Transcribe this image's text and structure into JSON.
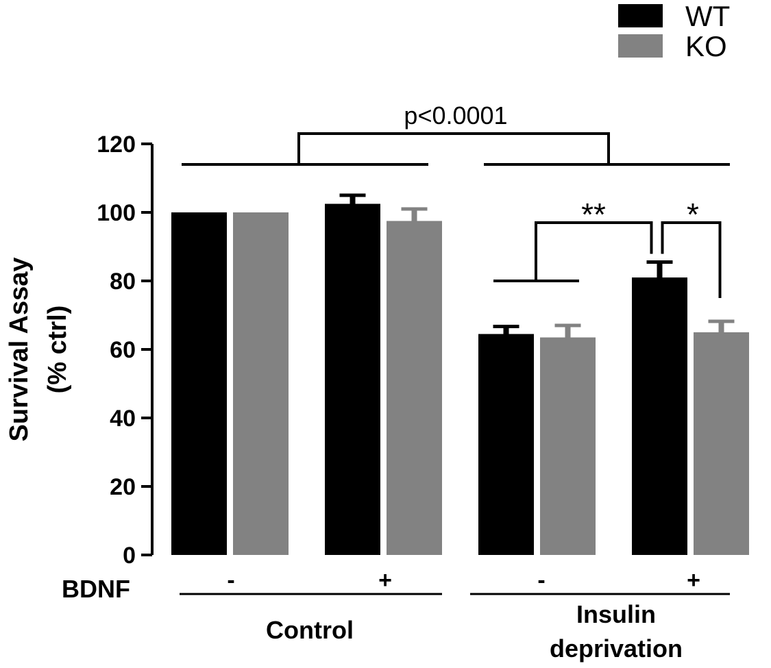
{
  "chart_data": {
    "type": "bar",
    "ylabel": [
      "Survival Assay",
      "(% ctrl)"
    ],
    "ylim": [
      0,
      120
    ],
    "yticks": [
      0,
      20,
      40,
      60,
      80,
      100,
      120
    ],
    "legend_position": "top-right",
    "colors": {
      "WT": "#000000",
      "KO": "#828282"
    },
    "series": [
      {
        "name": "WT",
        "values": [
          100,
          102.5,
          64.5,
          81
        ],
        "errors": [
          0,
          2.5,
          2.2,
          4.5
        ]
      },
      {
        "name": "KO",
        "values": [
          100,
          97.5,
          63.5,
          65
        ],
        "errors": [
          0,
          3.5,
          3.5,
          3.2
        ]
      }
    ],
    "bdnf_label": "BDNF",
    "bdnf_signs": [
      "-",
      "+",
      "-",
      "+"
    ],
    "groups": [
      {
        "label": [
          "Control"
        ]
      },
      {
        "label": [
          "Insulin",
          "deprivation"
        ]
      }
    ],
    "annotations": {
      "overall": "p<0.0001",
      "ins_bdnf_effect": "**",
      "ins_genotype_effect": "*"
    }
  }
}
